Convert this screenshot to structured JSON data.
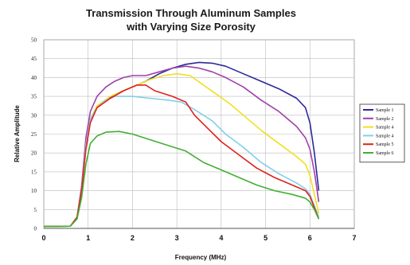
{
  "chart_data": {
    "type": "line",
    "title": "Transmission Through Aluminum Samples",
    "subtitle": "with Varying Size Porosity",
    "xlabel": "Frequency (MHz)",
    "ylabel": "Relative Amplitude",
    "xlim": [
      0,
      7
    ],
    "ylim": [
      0,
      50
    ],
    "xticks": [
      "0",
      "1",
      "2",
      "3",
      "4",
      "5",
      "6",
      "7"
    ],
    "yticks": [
      "0",
      "5",
      "10",
      "15",
      "20",
      "25",
      "30",
      "35",
      "40",
      "45",
      "50"
    ],
    "grid": true,
    "legend_position": "right",
    "series": [
      {
        "name": "Sample 1",
        "color": "#2a2a9a",
        "points": [
          [
            0,
            0.5
          ],
          [
            0.6,
            0.6
          ],
          [
            0.75,
            3
          ],
          [
            0.85,
            10
          ],
          [
            0.95,
            22
          ],
          [
            1.05,
            29
          ],
          [
            1.2,
            32
          ],
          [
            1.4,
            34
          ],
          [
            1.7,
            36
          ],
          [
            2.0,
            37.5
          ],
          [
            2.3,
            39
          ],
          [
            2.6,
            41
          ],
          [
            2.9,
            42.5
          ],
          [
            3.2,
            43.5
          ],
          [
            3.5,
            44
          ],
          [
            3.8,
            43.8
          ],
          [
            4.1,
            43
          ],
          [
            4.5,
            41
          ],
          [
            4.9,
            39
          ],
          [
            5.3,
            37
          ],
          [
            5.7,
            34.5
          ],
          [
            5.9,
            32
          ],
          [
            6.0,
            28
          ],
          [
            6.1,
            20
          ],
          [
            6.2,
            10
          ]
        ]
      },
      {
        "name": "Sample 2",
        "color": "#a040a8",
        "points": [
          [
            0,
            0.5
          ],
          [
            0.6,
            0.6
          ],
          [
            0.75,
            3
          ],
          [
            0.85,
            11
          ],
          [
            0.95,
            24
          ],
          [
            1.05,
            31
          ],
          [
            1.2,
            35
          ],
          [
            1.4,
            37.5
          ],
          [
            1.6,
            39
          ],
          [
            1.8,
            40
          ],
          [
            2.0,
            40.5
          ],
          [
            2.3,
            40.5
          ],
          [
            2.6,
            41.5
          ],
          [
            2.9,
            42.5
          ],
          [
            3.2,
            43
          ],
          [
            3.5,
            42.5
          ],
          [
            3.8,
            41.5
          ],
          [
            4.1,
            40
          ],
          [
            4.5,
            37.5
          ],
          [
            4.9,
            34
          ],
          [
            5.3,
            31
          ],
          [
            5.7,
            27
          ],
          [
            5.9,
            24
          ],
          [
            6.0,
            21
          ],
          [
            6.1,
            15
          ],
          [
            6.2,
            7
          ]
        ]
      },
      {
        "name": "Sample 4",
        "color": "#f0e020",
        "points": [
          [
            0,
            0.5
          ],
          [
            0.6,
            0.6
          ],
          [
            0.75,
            3
          ],
          [
            0.85,
            10
          ],
          [
            0.95,
            22
          ],
          [
            1.05,
            29
          ],
          [
            1.2,
            32.5
          ],
          [
            1.5,
            35
          ],
          [
            1.8,
            36.5
          ],
          [
            2.1,
            38
          ],
          [
            2.4,
            39.5
          ],
          [
            2.7,
            40.5
          ],
          [
            3.0,
            41
          ],
          [
            3.3,
            40.5
          ],
          [
            3.6,
            38
          ],
          [
            3.9,
            35.5
          ],
          [
            4.2,
            33
          ],
          [
            4.5,
            30
          ],
          [
            4.9,
            26
          ],
          [
            5.3,
            22.5
          ],
          [
            5.7,
            19
          ],
          [
            5.9,
            17
          ],
          [
            6.0,
            14
          ],
          [
            6.1,
            9
          ],
          [
            6.2,
            4
          ]
        ]
      },
      {
        "name": "Sample 4",
        "color": "#80d0e8",
        "points": [
          [
            0,
            0.5
          ],
          [
            0.6,
            0.6
          ],
          [
            0.75,
            3
          ],
          [
            0.85,
            10
          ],
          [
            0.95,
            22
          ],
          [
            1.05,
            29
          ],
          [
            1.2,
            32
          ],
          [
            1.4,
            34
          ],
          [
            1.6,
            35
          ],
          [
            2.0,
            35
          ],
          [
            2.4,
            34.5
          ],
          [
            2.8,
            34
          ],
          [
            3.1,
            33.5
          ],
          [
            3.4,
            31.5
          ],
          [
            3.8,
            28.5
          ],
          [
            4.1,
            25
          ],
          [
            4.5,
            21.5
          ],
          [
            4.9,
            17.5
          ],
          [
            5.3,
            14.5
          ],
          [
            5.7,
            12
          ],
          [
            5.9,
            10.5
          ],
          [
            6.0,
            9
          ],
          [
            6.1,
            6
          ],
          [
            6.2,
            3
          ]
        ]
      },
      {
        "name": "Sample 5",
        "color": "#e02020",
        "points": [
          [
            0,
            0.5
          ],
          [
            0.6,
            0.6
          ],
          [
            0.75,
            3
          ],
          [
            0.85,
            10
          ],
          [
            0.95,
            21
          ],
          [
            1.05,
            28
          ],
          [
            1.2,
            32
          ],
          [
            1.5,
            34.5
          ],
          [
            1.8,
            36.5
          ],
          [
            2.1,
            38
          ],
          [
            2.3,
            38
          ],
          [
            2.5,
            36.5
          ],
          [
            2.9,
            35
          ],
          [
            3.2,
            33.5
          ],
          [
            3.4,
            30
          ],
          [
            3.7,
            26.5
          ],
          [
            4.0,
            23
          ],
          [
            4.4,
            19.5
          ],
          [
            4.8,
            16
          ],
          [
            5.2,
            13.5
          ],
          [
            5.6,
            11.5
          ],
          [
            5.9,
            10
          ],
          [
            6.0,
            8.5
          ],
          [
            6.1,
            5.5
          ],
          [
            6.2,
            2.5
          ]
        ]
      },
      {
        "name": "Sample 6",
        "color": "#40b030",
        "points": [
          [
            0,
            0.5
          ],
          [
            0.6,
            0.6
          ],
          [
            0.75,
            2.5
          ],
          [
            0.85,
            8
          ],
          [
            0.95,
            17
          ],
          [
            1.05,
            22.5
          ],
          [
            1.2,
            24.5
          ],
          [
            1.4,
            25.5
          ],
          [
            1.7,
            25.7
          ],
          [
            2.0,
            25
          ],
          [
            2.4,
            23.5
          ],
          [
            2.8,
            22
          ],
          [
            3.2,
            20.5
          ],
          [
            3.6,
            17.5
          ],
          [
            4.0,
            15.5
          ],
          [
            4.4,
            13.5
          ],
          [
            4.8,
            11.5
          ],
          [
            5.2,
            10
          ],
          [
            5.6,
            9
          ],
          [
            5.9,
            8
          ],
          [
            6.0,
            7
          ],
          [
            6.1,
            5
          ],
          [
            6.2,
            2.5
          ]
        ]
      }
    ]
  }
}
